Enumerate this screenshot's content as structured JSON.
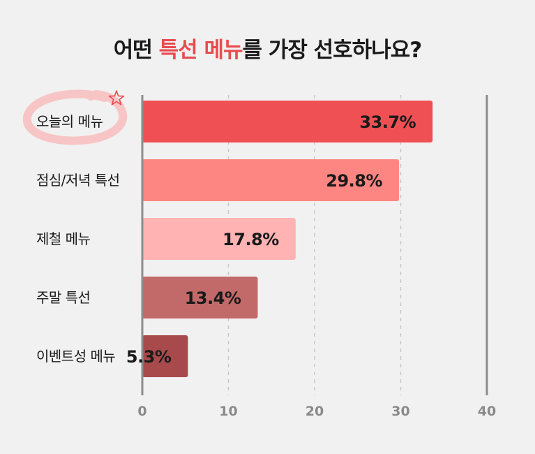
{
  "title": {
    "part1": "어떤 ",
    "highlight": "특선 메뉴",
    "part2": "를 가장 선호하나요?"
  },
  "chart_data": {
    "type": "bar",
    "orientation": "horizontal",
    "categories": [
      "오늘의 메뉴",
      "점심/저녁 특선",
      "제철 메뉴",
      "주말 특선",
      "이벤트성 메뉴"
    ],
    "values": [
      33.7,
      29.8,
      17.8,
      13.4,
      5.3
    ],
    "value_labels": [
      "33.7%",
      "29.8%",
      "17.8%",
      "13.4%",
      "5.3%"
    ],
    "bar_colors": [
      "#ef5054",
      "#fd8582",
      "#ffb3b3",
      "#c26a69",
      "#a84a4b"
    ],
    "xlim": [
      0,
      40
    ],
    "x_ticks": [
      0,
      10,
      20,
      30,
      40
    ],
    "x_tick_labels": [
      "0",
      "10",
      "20",
      "30",
      "40"
    ],
    "grid": "vertical dashed",
    "highlighted_category": "오늘의 메뉴"
  },
  "colors": {
    "background": "#f1f1f1",
    "title_accent": "#ea4a4f",
    "axis": "#8c8c8c",
    "grid": "#c8c8c8",
    "annotation_circle": "#f7c5c5",
    "annotation_star": "#ea4a4f"
  },
  "icons": {
    "annotation": "hand-drawn-circle-with-star-icon"
  }
}
